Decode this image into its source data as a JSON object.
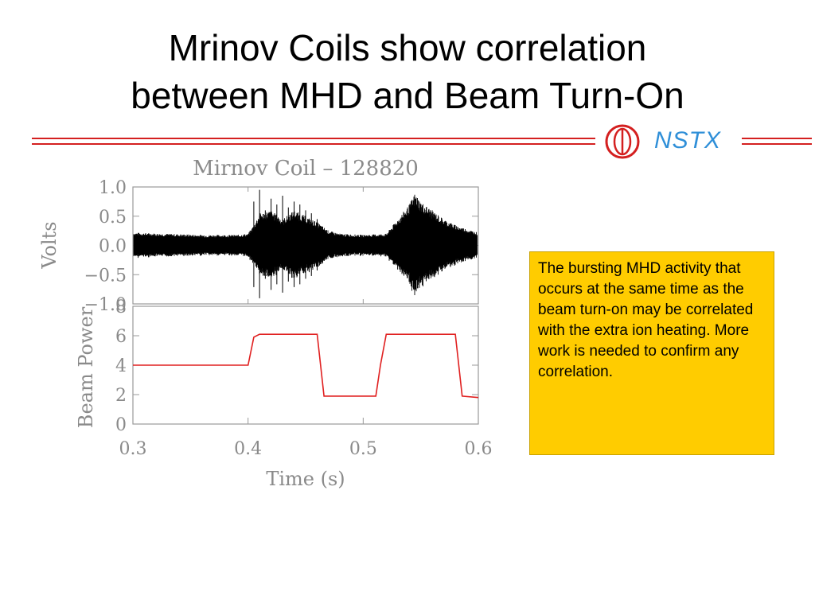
{
  "slide": {
    "title_line1": "Mrinov Coils show correlation",
    "title_line2": "between MHD and Beam Turn-On",
    "logo_text": "NSTX",
    "note": "The bursting MHD activity that occurs at the same time as the beam turn-on may be correlated with the extra ion heating.  More work is needed to confirm any correlation."
  },
  "colors": {
    "rule": "#d42020",
    "logo_blue": "#2f8fd8",
    "note_bg": "#ffcc00",
    "signal": "#000000",
    "beam": "#e02020",
    "axis_text": "#8a8a8a"
  },
  "chart_data": [
    {
      "type": "line",
      "title": "Mirnov Coil – 128820",
      "xlabel": "",
      "ylabel": "Volts",
      "xlim": [
        0.3,
        0.6
      ],
      "ylim": [
        -1.0,
        1.0
      ],
      "yticks": [
        "1.0",
        "0.5",
        "0.0",
        "−0.5",
        "−1.0"
      ],
      "ytick_values": [
        1.0,
        0.5,
        0.0,
        -0.5,
        -1.0
      ],
      "series": [
        {
          "envelope_t": [
            0.3,
            0.33,
            0.36,
            0.39,
            0.4,
            0.405,
            0.41,
            0.42,
            0.43,
            0.44,
            0.45,
            0.46,
            0.47,
            0.48,
            0.5,
            0.52,
            0.53,
            0.54,
            0.545,
            0.55,
            0.56,
            0.57,
            0.58,
            0.59,
            0.6
          ],
          "envelope_amp": [
            0.22,
            0.2,
            0.18,
            0.18,
            0.2,
            0.35,
            0.55,
            0.6,
            0.45,
            0.6,
            0.5,
            0.4,
            0.25,
            0.2,
            0.18,
            0.2,
            0.45,
            0.7,
            0.9,
            0.75,
            0.6,
            0.45,
            0.35,
            0.28,
            0.22
          ],
          "bursts_t": [
            0.405,
            0.41,
            0.415,
            0.42,
            0.425,
            0.43,
            0.435,
            0.44,
            0.445,
            0.45,
            0.455,
            0.46
          ],
          "bursts_amp": [
            0.75,
            0.95,
            0.6,
            0.8,
            0.7,
            0.85,
            0.65,
            0.75,
            0.7,
            0.6,
            0.55,
            0.45
          ]
        }
      ]
    },
    {
      "type": "line",
      "title": "",
      "xlabel": "Time (s)",
      "ylabel": "Beam Power",
      "xlim": [
        0.3,
        0.6
      ],
      "ylim": [
        0,
        8
      ],
      "xticks": [
        "0.3",
        "0.4",
        "0.5",
        "0.6"
      ],
      "xtick_values": [
        0.3,
        0.4,
        0.5,
        0.6
      ],
      "yticks": [
        "8",
        "6",
        "4",
        "2",
        "0"
      ],
      "ytick_values": [
        8,
        6,
        4,
        2,
        0
      ],
      "series": [
        {
          "x": [
            0.3,
            0.4,
            0.405,
            0.41,
            0.46,
            0.463,
            0.466,
            0.511,
            0.515,
            0.52,
            0.58,
            0.583,
            0.586,
            0.6
          ],
          "y": [
            4.0,
            4.0,
            5.9,
            6.1,
            6.1,
            4.0,
            1.9,
            1.9,
            4.0,
            6.1,
            6.1,
            4.0,
            1.9,
            1.8
          ]
        }
      ]
    }
  ]
}
